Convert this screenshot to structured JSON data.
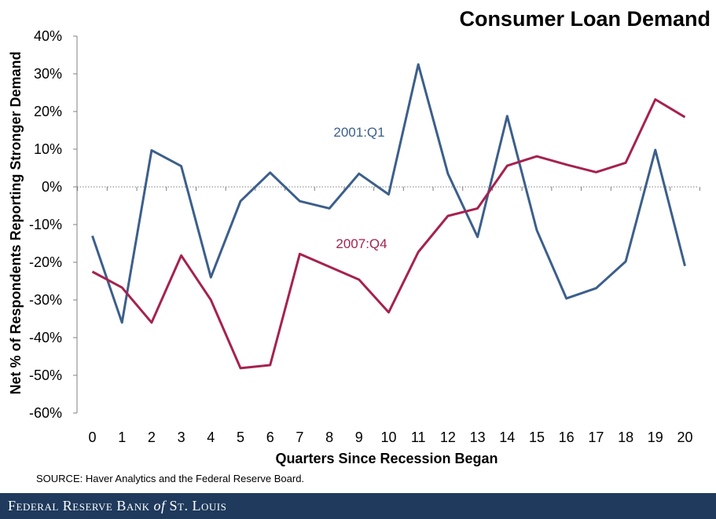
{
  "chart_data": {
    "type": "line",
    "title": "Consumer Loan Demand",
    "xlabel": "Quarters Since Recession Began",
    "ylabel": "Net % of Respondents Reporting Stronger Demand",
    "x": [
      0,
      1,
      2,
      3,
      4,
      5,
      6,
      7,
      8,
      9,
      10,
      11,
      12,
      13,
      14,
      15,
      16,
      17,
      18,
      19,
      20
    ],
    "ylim": [
      -60,
      40
    ],
    "yticks": [
      -60,
      -50,
      -40,
      -30,
      -20,
      -10,
      0,
      10,
      20,
      30,
      40
    ],
    "ytick_labels": [
      "-60%",
      "-50%",
      "-40%",
      "-30%",
      "-20%",
      "-10%",
      "0%",
      "10%",
      "20%",
      "30%",
      "40%"
    ],
    "series": [
      {
        "name": "2001:Q1",
        "color": "#3c5f8b",
        "values": [
          -13,
          -36,
          9.7,
          5.5,
          -24,
          -3.8,
          3.8,
          -3.8,
          -5.7,
          3.5,
          -2,
          32.5,
          3.5,
          -13.3,
          18.8,
          -11.5,
          -29.6,
          -26.9,
          -19.8,
          9.8,
          -21
        ]
      },
      {
        "name": "2007:Q4",
        "color": "#a5224f",
        "values": [
          -22.5,
          -26.7,
          -36,
          -18.2,
          -30,
          -48.1,
          -47.3,
          -17.8,
          -21.2,
          -24.6,
          -33.3,
          -17.3,
          -7.7,
          -5.7,
          5.6,
          8.1,
          5.9,
          3.9,
          6.4,
          23.2,
          18.5
        ]
      }
    ],
    "zero_line": "dotted",
    "grid": false,
    "legend": "inline labels"
  },
  "source_note": "SOURCE: Haver Analytics and the Federal Reserve Board.",
  "footer": {
    "bank_name": "Federal Reserve Bank",
    "of_word": "of",
    "city": "St. Louis",
    "background_color": "#1f3a5c"
  }
}
